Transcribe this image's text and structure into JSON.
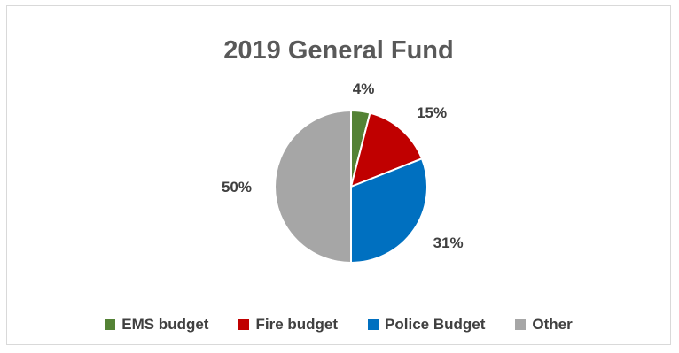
{
  "chart_data": {
    "type": "pie",
    "title": "2019 General Fund",
    "legend_position": "bottom",
    "start_angle_deg": 0,
    "direction": "clockwise",
    "slices": [
      {
        "label": "EMS budget",
        "value": 4,
        "display": "4%",
        "color": "#548235"
      },
      {
        "label": "Fire budget",
        "value": 15,
        "display": "15%",
        "color": "#c00000"
      },
      {
        "label": "Police Budget",
        "value": 31,
        "display": "31%",
        "color": "#0070c0"
      },
      {
        "label": "Other",
        "value": 50,
        "display": "50%",
        "color": "#a6a6a6"
      }
    ]
  }
}
